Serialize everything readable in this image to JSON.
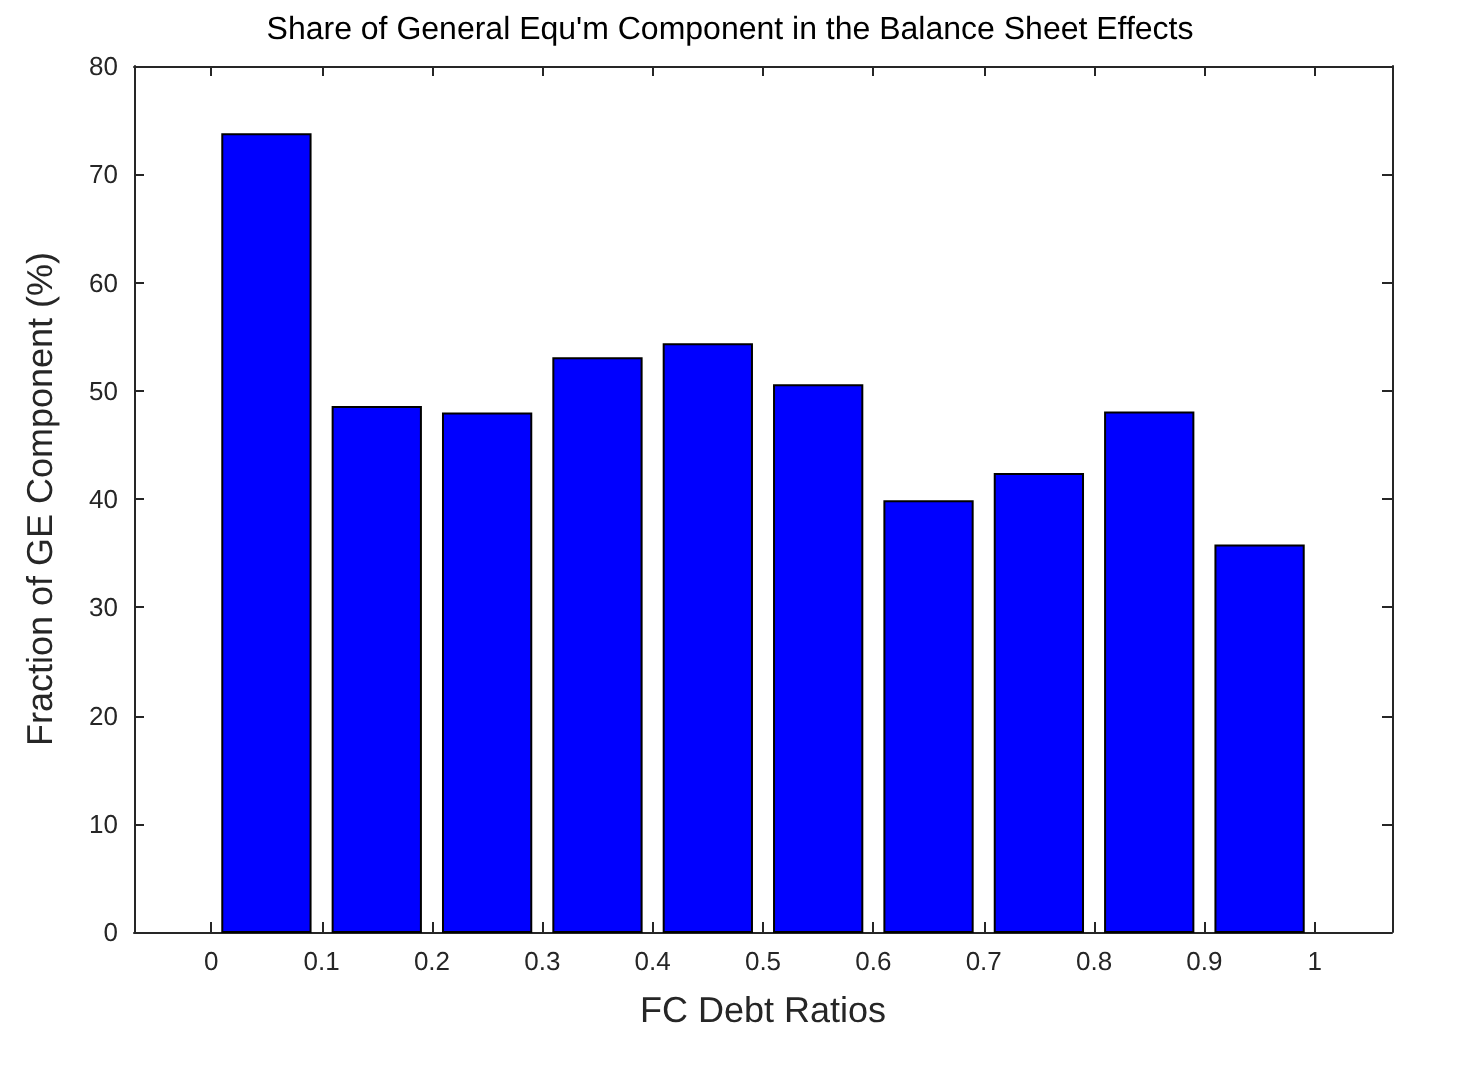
{
  "chart_data": {
    "type": "bar",
    "title": "Share of General Equ'm Component in the Balance Sheet Effects",
    "xlabel": "FC Debt Ratios",
    "ylabel": "Fraction of GE Component (%)",
    "x": [
      0.05,
      0.15,
      0.25,
      0.35,
      0.45,
      0.55,
      0.65,
      0.75,
      0.85,
      0.95
    ],
    "values": [
      73.7,
      48.5,
      47.9,
      53.0,
      54.3,
      50.5,
      39.8,
      42.3,
      48.0,
      35.7
    ],
    "color": "#0000ff",
    "xlim": [
      -0.07,
      1.07
    ],
    "xticks": [
      0,
      0.1,
      0.2,
      0.3,
      0.4,
      0.5,
      0.6,
      0.7,
      0.8,
      0.9,
      1
    ],
    "ylim": [
      0,
      80
    ],
    "yticks": [
      0,
      10,
      20,
      30,
      40,
      50,
      60,
      70,
      80
    ],
    "grid": false
  }
}
